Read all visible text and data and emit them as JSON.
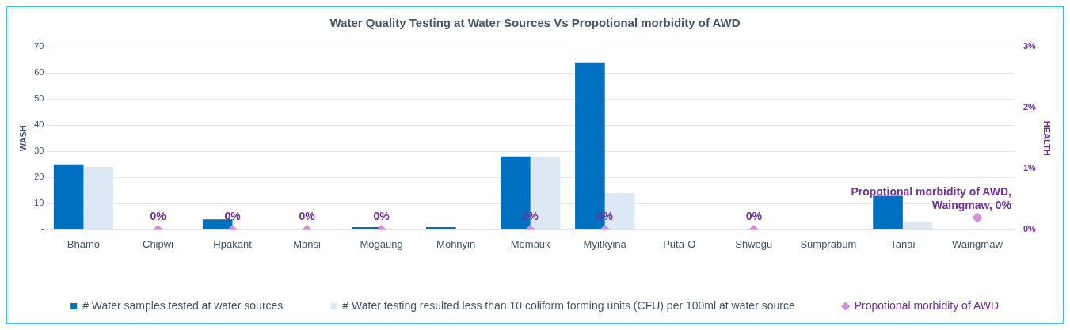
{
  "chart_data": {
    "type": "bar",
    "title": "Water Quality Testing at Water Sources Vs Propotional morbidity of AWD",
    "ylabel": "WASH",
    "y2label": "HEALTH",
    "categories": [
      "Bhamo",
      "Chipwi",
      "Hpakant",
      "Mansi",
      "Mogaung",
      "Mohnyin",
      "Momauk",
      "Myitkyina",
      "Puta-O",
      "Shwegu",
      "Sumprabum",
      "Tanai",
      "Waingmaw"
    ],
    "series": [
      {
        "name": "# Water samples tested at water sources",
        "color": "#0070c0",
        "values": [
          25,
          0,
          4,
          0,
          1,
          1,
          28,
          64,
          0,
          0,
          0,
          13,
          0
        ]
      },
      {
        "name": "# Water testing resulted less than 10 coliform forming units (CFU) per 100ml at water source",
        "color": "#dde8f5",
        "values": [
          24,
          0,
          0,
          0,
          0,
          0,
          28,
          14,
          0,
          0,
          0,
          3,
          0
        ]
      },
      {
        "name": "Propotional morbidity of AWD",
        "type": "scatter",
        "axis": "y2",
        "color": "#d68fd6",
        "marker": "diamond",
        "x": [
          "Chipwi",
          "Hpakant",
          "Mansi",
          "Mogaung",
          "Momauk",
          "Myitkyina",
          "Shwegu",
          "Waingmaw"
        ],
        "values": [
          0,
          0,
          0,
          0,
          0,
          0,
          0,
          0.2
        ],
        "value_labels": [
          "0%",
          "0%",
          "0%",
          "0%",
          "0%",
          "0%",
          "0%",
          "Propotional morbidity of AWD, Waingmaw, 0%"
        ]
      }
    ],
    "ylim": [
      0,
      70
    ],
    "yticks": [
      {
        "value": 0,
        "label": "-"
      },
      10,
      20,
      30,
      40,
      50,
      60,
      70
    ],
    "y2lim": [
      0,
      3
    ],
    "y2ticks": [
      {
        "value": 0,
        "label": "0%"
      },
      {
        "value": 1,
        "label": "1%"
      },
      {
        "value": 2,
        "label": "2%"
      },
      {
        "value": 3,
        "label": "3%"
      }
    ],
    "grid": "y",
    "legend": "bottom"
  }
}
